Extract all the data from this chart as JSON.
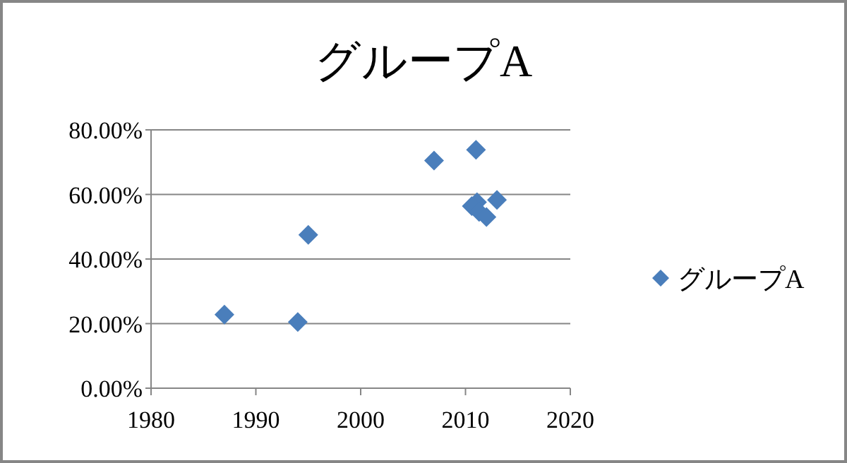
{
  "chart_data": {
    "type": "scatter",
    "title": "グループA",
    "x": [
      1987,
      1994,
      1995,
      2007,
      2011,
      2011.1,
      2010.6,
      2011.3,
      2012,
      2013
    ],
    "series": [
      {
        "name": "グループA",
        "color": "#4a7ebb",
        "values": [
          22.8,
          20.5,
          47.5,
          70.5,
          73.8,
          57.6,
          56.4,
          54.6,
          53,
          58.3
        ]
      }
    ],
    "xlim": [
      1980,
      2020
    ],
    "xticks": [
      1980,
      1990,
      2000,
      2010,
      2020
    ],
    "ylim": [
      0,
      80
    ],
    "yticks": [
      {
        "value": 0,
        "label": "0.00%"
      },
      {
        "value": 20,
        "label": "20.00%"
      },
      {
        "value": 40,
        "label": "40.00%"
      },
      {
        "value": 60,
        "label": "60.00%"
      },
      {
        "value": 80,
        "label": "80.00%"
      }
    ],
    "grid": "y",
    "legend": "right",
    "marker": "diamond"
  }
}
